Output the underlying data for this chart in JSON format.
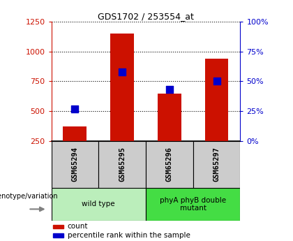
{
  "title": "GDS1702 / 253554_at",
  "categories": [
    "GSM65294",
    "GSM65295",
    "GSM65296",
    "GSM65297"
  ],
  "count_values": [
    370,
    1150,
    650,
    940
  ],
  "percentile_values": [
    27,
    58,
    43,
    50
  ],
  "group_labels": [
    "wild type",
    "phyA phyB double\nmutant"
  ],
  "group_ranges": [
    [
      0,
      2
    ],
    [
      2,
      4
    ]
  ],
  "group_colors": [
    "#bbeebb",
    "#44dd44"
  ],
  "left_ylim": [
    250,
    1250
  ],
  "right_ylim": [
    0,
    100
  ],
  "left_yticks": [
    250,
    500,
    750,
    1000,
    1250
  ],
  "right_yticks": [
    0,
    25,
    50,
    75,
    100
  ],
  "bar_color": "#cc1100",
  "dot_color": "#0000cc",
  "grid_color": "#000000",
  "left_tick_color": "#cc1100",
  "right_tick_color": "#0000cc",
  "bg_color": "#ffffff",
  "plot_bg_color": "#ffffff",
  "xticklabel_bg": "#cccccc",
  "bar_width": 0.5,
  "dot_size": 55,
  "legend_labels": [
    "count",
    "percentile rank within the sample"
  ],
  "genotype_label": "genotype/variation"
}
